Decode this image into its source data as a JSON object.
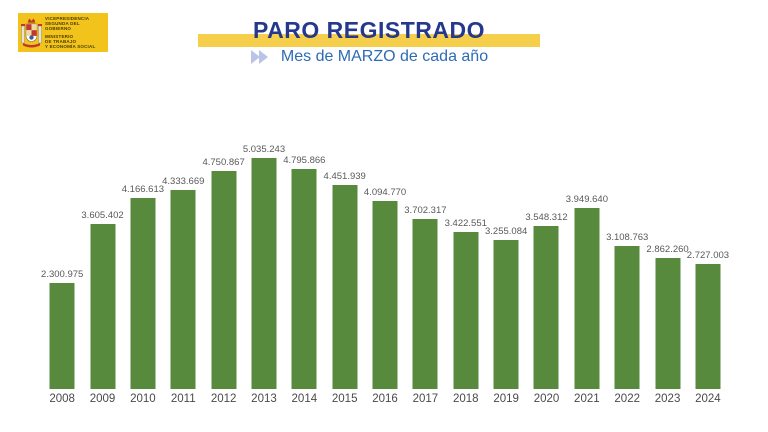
{
  "header": {
    "logo": {
      "line1": "VICEPRESIDENCIA",
      "line2": "SEGUNDA DEL GOBIERNO",
      "line3": "MINISTERIO",
      "line4": "DE TRABAJO",
      "line5": "Y ECONOMÍA SOCIAL"
    },
    "title": "PARO REGISTRADO",
    "subtitle": "Mes de MARZO de cada año"
  },
  "colors": {
    "logo_yellow": "#F2C31B",
    "band_yellow": "#F5CE4B",
    "title_navy": "#24388D",
    "subtitle_blue": "#2D6BB4",
    "chevron_periwinkle": "#B9C4E6",
    "bar_green": "#578A3D",
    "value_label_gray": "#595959",
    "year_label_gray": "#4A4A4A"
  },
  "chart_data": {
    "type": "bar",
    "title": "PARO REGISTRADO",
    "subtitle": "Mes de MARZO de cada año",
    "xlabel": "",
    "ylabel": "",
    "grid": false,
    "legend": false,
    "ylim": [
      0,
      5035243
    ],
    "bar_color": "#578A3D",
    "categories": [
      "2008",
      "2009",
      "2010",
      "2011",
      "2012",
      "2013",
      "2014",
      "2015",
      "2016",
      "2017",
      "2018",
      "2019",
      "2020",
      "2021",
      "2022",
      "2023",
      "2024"
    ],
    "values": [
      2300975,
      3605402,
      4166613,
      4333669,
      4750867,
      5035243,
      4795866,
      4451939,
      4094770,
      3702317,
      3422551,
      3255084,
      3548312,
      3949640,
      3108763,
      2862260,
      2727003
    ],
    "value_labels": [
      "2.300.975",
      "3.605.402",
      "4.166.613",
      "4.333.669",
      "4.750.867",
      "5.035.243",
      "4.795.866",
      "4.451.939",
      "4.094.770",
      "3.702.317",
      "3.422.551",
      "3.255.084",
      "3.548.312",
      "3.949.640",
      "3.108.763",
      "2.862.260",
      "2.727.003"
    ]
  }
}
